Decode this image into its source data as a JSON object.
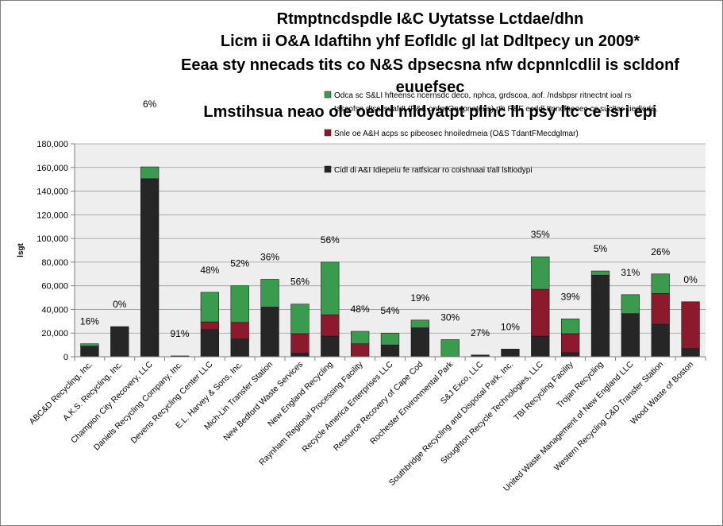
{
  "chart_data": {
    "type": "bar",
    "stacked": true,
    "title_lines": [
      "Rtmptncdspdle I&C Uytatsse Lctdae/dhn",
      "Licm ii O&A Idaftihn yhf Eofldlc gl lat Ddltpecy un 2009*",
      "Eeaa sty nnecads tits co N&S dpsecsna nfw dcpnnlcdlil is scldonf",
      "euuefsec",
      "Lmstihsua neao ole oedd mldyatpt plinc lh psy ltc ce isri epi"
    ],
    "ylabel": "lsgt",
    "ylim": [
      0,
      180000
    ],
    "y_ticks": [
      "0",
      "20,000",
      "40,000",
      "60,000",
      "80,000",
      "100,000",
      "120,000",
      "140,000",
      "160,000",
      "180,000"
    ],
    "grid": true,
    "legend_placement": "top-right",
    "legend": [
      {
        "series": "green",
        "text": "Odca sc S&LI hfteensc ncernsdc deco, nphca, grdscoa, aof.        /ndsbpsr ritnectnt ioal rs tascofsn dtsslisuafdt (P&& onfgsOnepnetens) rth R&F ecddl ttnncfneoec cc sucltar ciedlode."
      },
      {
        "series": "red",
        "text": "Snle oe A&H acps sc pibeosec hnoiledrneia (O&S TdantFMecdglmar)"
      },
      {
        "series": "black",
        "text": "Cidl di A&I Idiepeiu fe ratfsicar ro coishnaai t/all lsltiodypi"
      }
    ],
    "colors": {
      "black": "#262626",
      "red": "#8c1a2c",
      "green": "#3a9a4e"
    },
    "categories": [
      "ABC&D Recycling, Inc.",
      "A.K.S. Recycling, Inc.",
      "Champion City Recovery, LLC",
      "Daniels Recycling Company, Inc.",
      "Devens Recycling Center LLC",
      "E.L. Harvey & Sons, Inc.",
      "Mich-Lin Transfer Station",
      "New Bedford Waste Services",
      "New England Recycling",
      "Raynham Regional Processing Facility",
      "Recycle America Enterprises LLC",
      "Resource Recovery of Cape Cod",
      "Rochester Environmental Park",
      "S&J Exco, LLC",
      "Southbridge Recycling and Disposal Park, Inc.",
      "Stoughton Recycle Technologies, LLC",
      "TBI Recycling Facility",
      "Trojan Recycling",
      "United Waste Management of New England LLC",
      "Western Recycling C&D Transfer Station",
      "Wood Waste of Boston"
    ],
    "series": [
      {
        "key": "black",
        "values": [
          9000,
          25500,
          150500,
          700,
          23000,
          15000,
          42000,
          3000,
          17500,
          0,
          10000,
          24500,
          0,
          1500,
          6500,
          17500,
          3500,
          69000,
          36500,
          27500,
          7000
        ]
      },
      {
        "key": "red",
        "values": [
          0,
          0,
          0,
          0,
          6500,
          14000,
          0,
          16500,
          18000,
          11000,
          0,
          0,
          0,
          0,
          0,
          39500,
          16000,
          0,
          0,
          26000,
          39500
        ]
      },
      {
        "key": "green",
        "values": [
          2000,
          0,
          10000,
          0,
          25000,
          31000,
          23500,
          25000,
          44500,
          10500,
          10000,
          6500,
          14500,
          0,
          0,
          27500,
          12500,
          3500,
          16000,
          16500,
          0
        ]
      }
    ],
    "percent_labels": [
      "16%",
      "0%",
      "6%",
      "91%",
      "48%",
      "52%",
      "36%",
      "56%",
      "56%",
      "48%",
      "54%",
      "19%",
      "30%",
      "27%",
      "10%",
      "35%",
      "39%",
      "5%",
      "31%",
      "26%",
      "0%"
    ]
  }
}
